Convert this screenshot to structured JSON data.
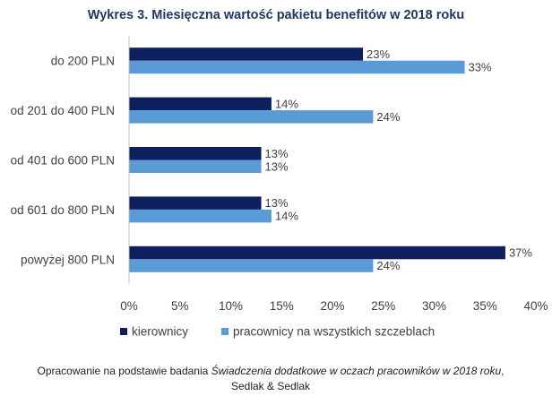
{
  "chart_data": {
    "type": "bar",
    "orientation": "horizontal",
    "title": "Wykres 3. Miesięczna wartość pakietu benefitów w 2018 roku",
    "categories": [
      "do 200 PLN",
      "od 201 do 400 PLN",
      "od 401 do 600 PLN",
      "od 601 do 800 PLN",
      "powyżej 800 PLN"
    ],
    "series": [
      {
        "name": "kierownicy",
        "values": [
          23,
          14,
          13,
          13,
          37
        ],
        "labels": [
          "23%",
          "14%",
          "13%",
          "13%",
          "37%"
        ],
        "color": "#0d1f5c"
      },
      {
        "name": "pracownicy na wszystkich szczeblach",
        "values": [
          33,
          24,
          13,
          14,
          24
        ],
        "labels": [
          "33%",
          "24%",
          "13%",
          "14%",
          "24%"
        ],
        "color": "#5b9bd5"
      }
    ],
    "xlim": [
      0,
      40
    ],
    "xticks": [
      0,
      5,
      10,
      15,
      20,
      25,
      30,
      35,
      40
    ],
    "xtick_labels": [
      "0%",
      "5%",
      "10%",
      "15%",
      "20%",
      "25%",
      "30%",
      "35%",
      "40%"
    ],
    "grid": false,
    "legend_position": "bottom"
  },
  "source": {
    "prefix": "Opracowanie na podstawie badania ",
    "italic": "Świadczenia dodatkowe w oczach pracowników w 2018 roku",
    "suffix": ",",
    "line2": "Sedlak & Sedlak"
  }
}
